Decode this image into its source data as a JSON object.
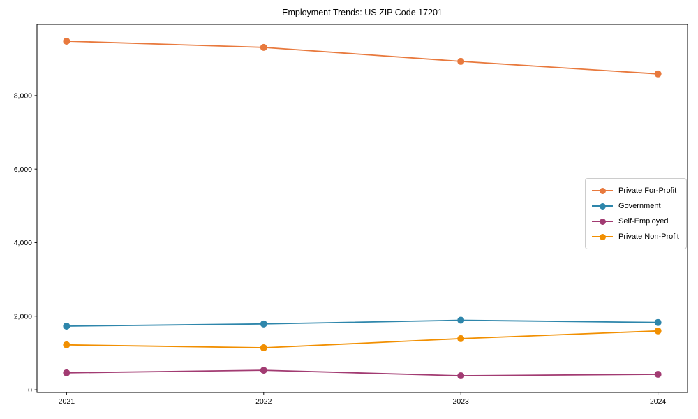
{
  "figure": {
    "background": "#ffffff",
    "spine_color": "#000000",
    "legend_border_color": "#cccccc"
  },
  "chart_data": {
    "type": "line",
    "title": "Employment Trends: US ZIP Code 17201",
    "xlabel": "",
    "ylabel": "",
    "grid": false,
    "legend_position": "center right",
    "marker": "circle",
    "x": [
      "2021",
      "2022",
      "2023",
      "2024"
    ],
    "series": [
      {
        "name": "Private For-Profit",
        "color": "#E8793D",
        "values": [
          9480,
          9310,
          8930,
          8590
        ]
      },
      {
        "name": "Government",
        "color": "#2E86AB",
        "values": [
          1730,
          1790,
          1890,
          1830
        ]
      },
      {
        "name": "Self-Employed",
        "color": "#A23B72",
        "values": [
          460,
          530,
          380,
          420
        ]
      },
      {
        "name": "Private Non-Profit",
        "color": "#F18F01",
        "values": [
          1220,
          1140,
          1390,
          1600
        ]
      }
    ],
    "yticks": [
      {
        "value": 0,
        "label": "0"
      },
      {
        "value": 2000,
        "label": "2,000"
      },
      {
        "value": 4000,
        "label": "4,000"
      },
      {
        "value": 6000,
        "label": "6,000"
      },
      {
        "value": 8000,
        "label": "8,000"
      }
    ],
    "ylim": [
      0,
      9950
    ]
  }
}
